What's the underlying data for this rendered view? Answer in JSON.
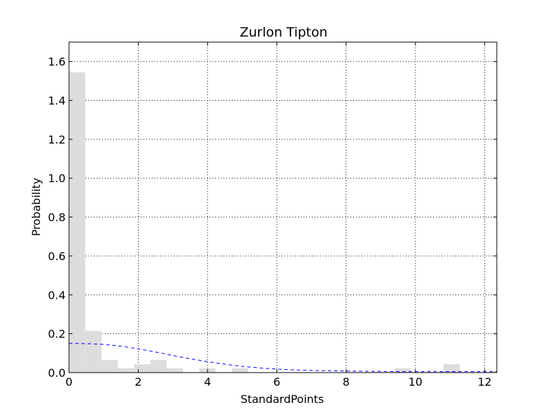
{
  "chart_data": {
    "type": "bar",
    "title": "Zurlon Tipton",
    "xlabel": "StandardPoints",
    "ylabel": "Probability",
    "xlim": [
      0,
      12.35
    ],
    "ylim": [
      0,
      1.7
    ],
    "xticks": [
      0,
      2,
      4,
      6,
      8,
      10,
      12
    ],
    "yticks": [
      0.0,
      0.2,
      0.4,
      0.6,
      0.8,
      1.0,
      1.2,
      1.4,
      1.6
    ],
    "grid": true,
    "histogram": {
      "bin_width": 0.47,
      "bins": [
        {
          "x0": 0.0,
          "value": 1.545
        },
        {
          "x0": 0.47,
          "value": 0.215
        },
        {
          "x0": 0.94,
          "value": 0.065
        },
        {
          "x0": 1.41,
          "value": 0.022
        },
        {
          "x0": 1.88,
          "value": 0.043
        },
        {
          "x0": 2.35,
          "value": 0.065
        },
        {
          "x0": 2.82,
          "value": 0.022
        },
        {
          "x0": 3.29,
          "value": 0.0
        },
        {
          "x0": 3.76,
          "value": 0.022
        },
        {
          "x0": 4.23,
          "value": 0.0
        },
        {
          "x0": 4.7,
          "value": 0.022
        },
        {
          "x0": 9.4,
          "value": 0.022
        },
        {
          "x0": 10.81,
          "value": 0.043
        },
        {
          "x0": 12.22,
          "value": 0.008
        }
      ],
      "color": "#dddddd"
    },
    "curve": {
      "x": [
        0,
        0.5,
        1.0,
        1.5,
        2.0,
        2.5,
        3.0,
        3.5,
        4.0,
        4.5,
        5.0,
        5.5,
        6.0,
        6.5,
        7.0,
        8.0,
        9.0,
        10.0,
        11.0,
        12.0,
        12.35
      ],
      "values": [
        0.15,
        0.149,
        0.145,
        0.136,
        0.122,
        0.106,
        0.088,
        0.071,
        0.056,
        0.043,
        0.032,
        0.024,
        0.018,
        0.014,
        0.011,
        0.008,
        0.006,
        0.005,
        0.005,
        0.005,
        0.005
      ],
      "color": "#0000ff",
      "style": "dashed"
    }
  }
}
